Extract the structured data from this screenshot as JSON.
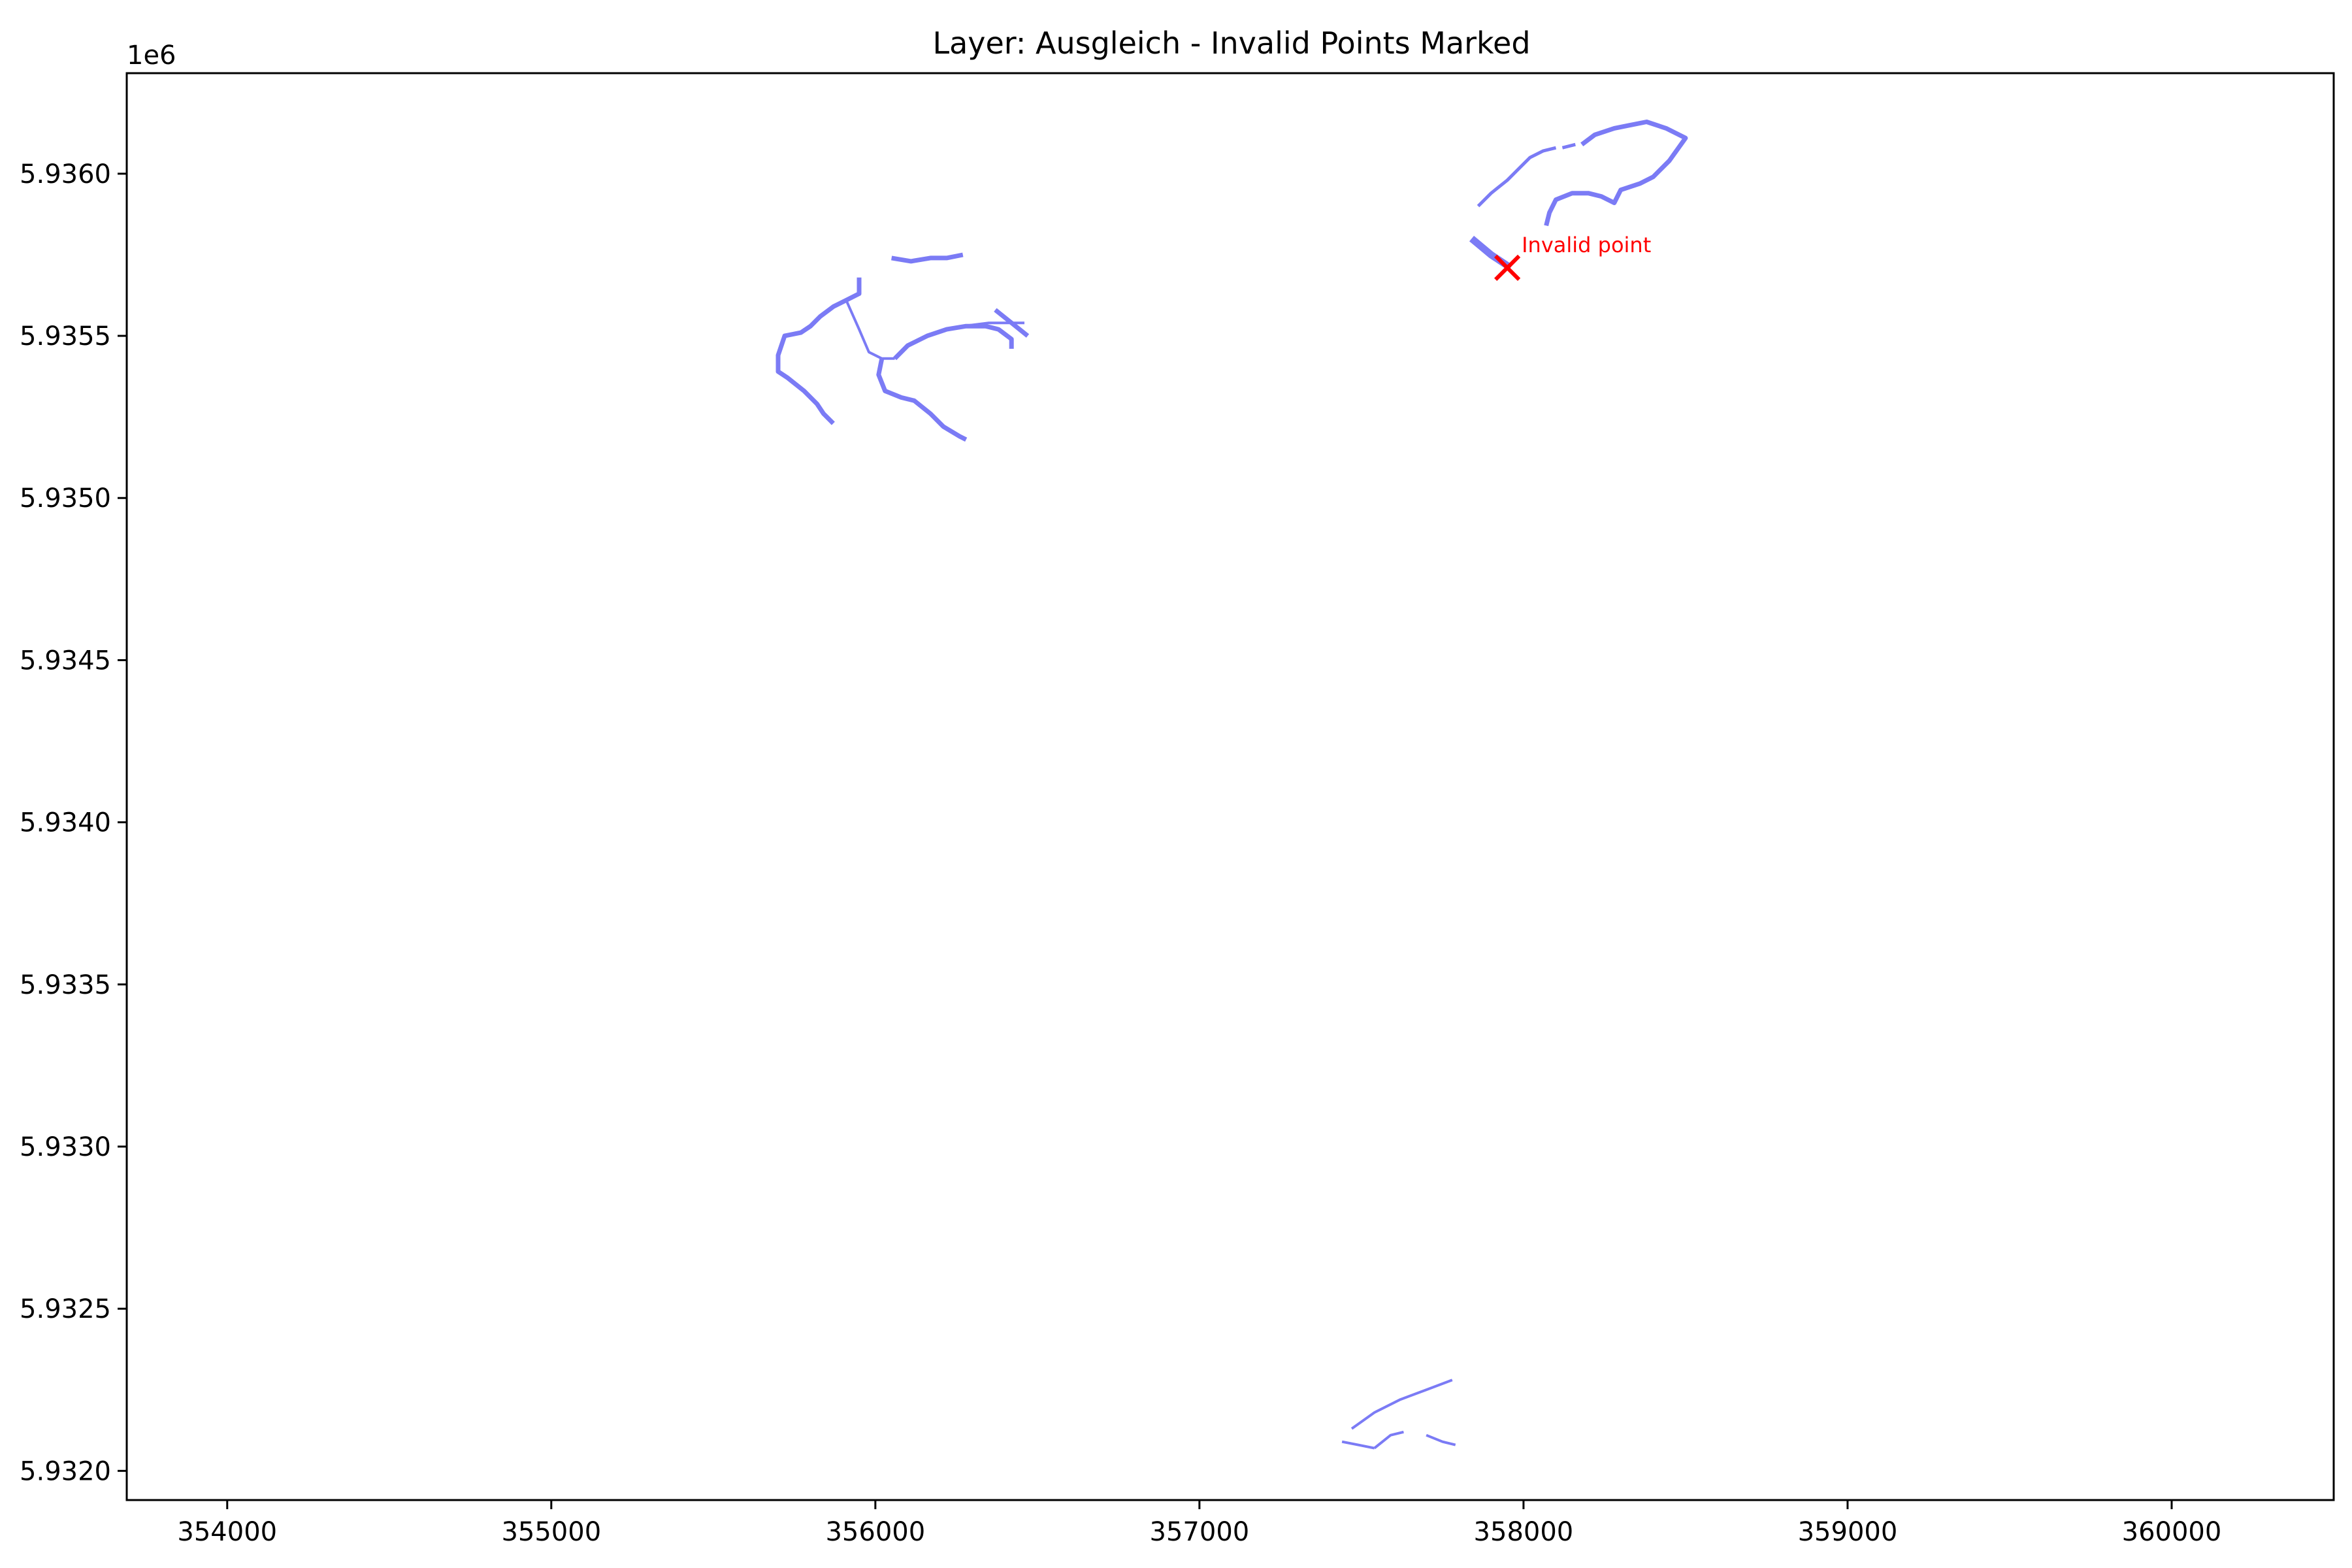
{
  "chart_data": {
    "type": "line",
    "title": "Layer: Ausgleich - Invalid Points Marked",
    "xlabel": "",
    "ylabel": "",
    "y_offset_label": "1e6",
    "xlim": [
      353690,
      360500
    ],
    "ylim": [
      5931910,
      5936310
    ],
    "x_ticks": [
      354000,
      355000,
      356000,
      357000,
      358000,
      359000,
      360000
    ],
    "y_ticks": [
      5932000,
      5932500,
      5933000,
      5933500,
      5934000,
      5934500,
      5935000,
      5935500,
      5936000
    ],
    "x_tick_labels": [
      "354000",
      "355000",
      "356000",
      "357000",
      "358000",
      "359000",
      "360000"
    ],
    "y_tick_labels": [
      "5.9320",
      "5.9325",
      "5.9330",
      "5.9335",
      "5.9340",
      "5.9345",
      "5.9350",
      "5.9355",
      "5.9360"
    ],
    "grid": false,
    "line_color": "#7b7bf5",
    "marker_color": "#ff0000",
    "series": [
      {
        "width": 7,
        "points": [
          [
            355870,
            5935230
          ],
          [
            355840,
            5935260
          ],
          [
            355820,
            5935290
          ],
          [
            355780,
            5935330
          ],
          [
            355730,
            5935370
          ],
          [
            355700,
            5935390
          ],
          [
            355700,
            5935440
          ],
          [
            355720,
            5935500
          ],
          [
            355770,
            5935510
          ],
          [
            355800,
            5935530
          ],
          [
            355830,
            5935560
          ],
          [
            355870,
            5935590
          ],
          [
            355910,
            5935610
          ],
          [
            355950,
            5935630
          ],
          [
            355950,
            5935680
          ]
        ]
      },
      {
        "width": 4,
        "points": [
          [
            355910,
            5935610
          ],
          [
            355950,
            5935520
          ],
          [
            355980,
            5935450
          ],
          [
            356020,
            5935430
          ],
          [
            356060,
            5935430
          ]
        ]
      },
      {
        "width": 7,
        "points": [
          [
            356020,
            5935430
          ],
          [
            356010,
            5935380
          ],
          [
            356030,
            5935330
          ],
          [
            356080,
            5935310
          ],
          [
            356120,
            5935300
          ],
          [
            356170,
            5935260
          ],
          [
            356210,
            5935220
          ],
          [
            356260,
            5935190
          ],
          [
            356280,
            5935180
          ]
        ]
      },
      {
        "width": 7,
        "points": [
          [
            356060,
            5935430
          ],
          [
            356100,
            5935470
          ],
          [
            356160,
            5935500
          ],
          [
            356220,
            5935520
          ],
          [
            356280,
            5935530
          ],
          [
            356340,
            5935530
          ],
          [
            356380,
            5935520
          ],
          [
            356420,
            5935490
          ],
          [
            356420,
            5935460
          ]
        ]
      },
      {
        "width": 4,
        "points": [
          [
            356270,
            5935530
          ],
          [
            356350,
            5935540
          ],
          [
            356420,
            5935540
          ],
          [
            356460,
            5935540
          ]
        ]
      },
      {
        "width": 7,
        "points": [
          [
            356370,
            5935580
          ],
          [
            356420,
            5935540
          ],
          [
            356470,
            5935500
          ]
        ]
      },
      {
        "width": 7,
        "points": [
          [
            356050,
            5935740
          ],
          [
            356110,
            5935730
          ],
          [
            356170,
            5935740
          ],
          [
            356220,
            5935740
          ],
          [
            356270,
            5935750
          ]
        ]
      },
      {
        "width": 11,
        "points": [
          [
            357840,
            5935800
          ],
          [
            357900,
            5935750
          ],
          [
            357960,
            5935710
          ]
        ]
      },
      {
        "width": 5,
        "points": [
          [
            357860,
            5935900
          ],
          [
            357900,
            5935940
          ],
          [
            357950,
            5935980
          ],
          [
            357990,
            5936020
          ],
          [
            358020,
            5936050
          ],
          [
            358060,
            5936070
          ],
          [
            358100,
            5936080
          ]
        ]
      },
      {
        "width": 5,
        "points": [
          [
            358120,
            5936080
          ],
          [
            358160,
            5936090
          ]
        ]
      },
      {
        "width": 7,
        "points": [
          [
            358180,
            5936090
          ],
          [
            358220,
            5936120
          ],
          [
            358280,
            5936140
          ],
          [
            358330,
            5936150
          ],
          [
            358380,
            5936160
          ],
          [
            358440,
            5936140
          ],
          [
            358500,
            5936110
          ],
          [
            358450,
            5936040
          ],
          [
            358400,
            5935990
          ],
          [
            358360,
            5935970
          ],
          [
            358300,
            5935950
          ],
          [
            358280,
            5935910
          ],
          [
            358240,
            5935930
          ],
          [
            358200,
            5935940
          ],
          [
            358150,
            5935940
          ],
          [
            358100,
            5935920
          ],
          [
            358080,
            5935880
          ],
          [
            358070,
            5935840
          ]
        ]
      },
      {
        "width": 4,
        "points": [
          [
            357470,
            5932130
          ],
          [
            357540,
            5932180
          ],
          [
            357620,
            5932220
          ],
          [
            357700,
            5932250
          ],
          [
            357780,
            5932280
          ]
        ]
      },
      {
        "width": 4,
        "points": [
          [
            357440,
            5932090
          ],
          [
            357490,
            5932080
          ],
          [
            357540,
            5932070
          ]
        ]
      },
      {
        "width": 4,
        "points": [
          [
            357540,
            5932070
          ],
          [
            357590,
            5932110
          ],
          [
            357630,
            5932120
          ]
        ]
      },
      {
        "width": 4,
        "points": [
          [
            357700,
            5932110
          ],
          [
            357750,
            5932090
          ],
          [
            357790,
            5932080
          ]
        ]
      }
    ],
    "invalid_points": [
      {
        "x": 357950,
        "y": 5935710,
        "label": "Invalid point"
      }
    ]
  }
}
